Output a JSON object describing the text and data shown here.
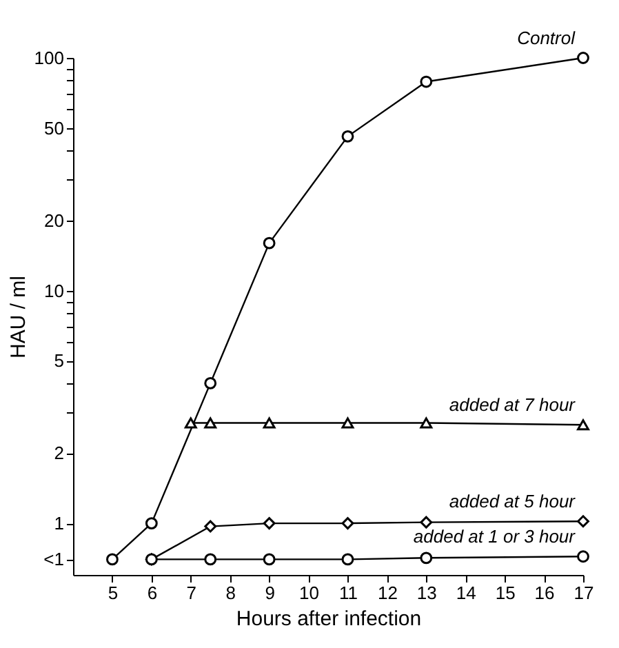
{
  "chart_data": {
    "type": "line",
    "xlabel": "Hours after infection",
    "ylabel": "HAU / ml",
    "log": "y",
    "grid": false,
    "line_style": "solid",
    "xlim": [
      4,
      17
    ],
    "xticks": [
      5,
      6,
      7,
      8,
      9,
      10,
      11,
      12,
      13,
      14,
      15,
      16,
      17
    ],
    "ylim": [
      0.6,
      100
    ],
    "yticks": [
      {
        "value": 0.7,
        "label": "<1"
      },
      1,
      2,
      {
        "value": 3,
        "label": null
      },
      {
        "value": 4,
        "label": null
      },
      5,
      {
        "value": 6,
        "label": null
      },
      {
        "value": 7,
        "label": null
      },
      {
        "value": 8,
        "label": null
      },
      {
        "value": 9,
        "label": null
      },
      10,
      20,
      {
        "value": 30,
        "label": null
      },
      {
        "value": 40,
        "label": null
      },
      50,
      {
        "value": 60,
        "label": null
      },
      {
        "value": 70,
        "label": null
      },
      {
        "value": 80,
        "label": null
      },
      {
        "value": 90,
        "label": null
      },
      100
    ],
    "series": [
      {
        "name": "Control",
        "color": "#000000",
        "marker": "circle",
        "x": [
          5,
          6,
          7.5,
          9,
          11,
          13,
          17
        ],
        "values": [
          0.7,
          1.0,
          4,
          16,
          46,
          79,
          100
        ]
      },
      {
        "name": "added at 7 hour",
        "color": "#000000",
        "marker": "triangle",
        "x": [
          7,
          7.5,
          9,
          11,
          13,
          17
        ],
        "values": [
          2.7,
          2.7,
          2.7,
          2.7,
          2.7,
          2.65
        ]
      },
      {
        "name": "added at 5 hour",
        "color": "#000000",
        "marker": "diamond",
        "x": [
          6,
          7.5,
          9,
          11,
          13,
          17
        ],
        "values": [
          0.7,
          0.97,
          1.0,
          1.0,
          1.01,
          1.02
        ]
      },
      {
        "name": "added at 1 or 3 hour",
        "color": "#000000",
        "marker": "circle",
        "x": [
          6,
          7.5,
          9,
          11,
          13,
          17
        ],
        "values": [
          0.7,
          0.7,
          0.7,
          0.7,
          0.71,
          0.72
        ]
      }
    ]
  }
}
